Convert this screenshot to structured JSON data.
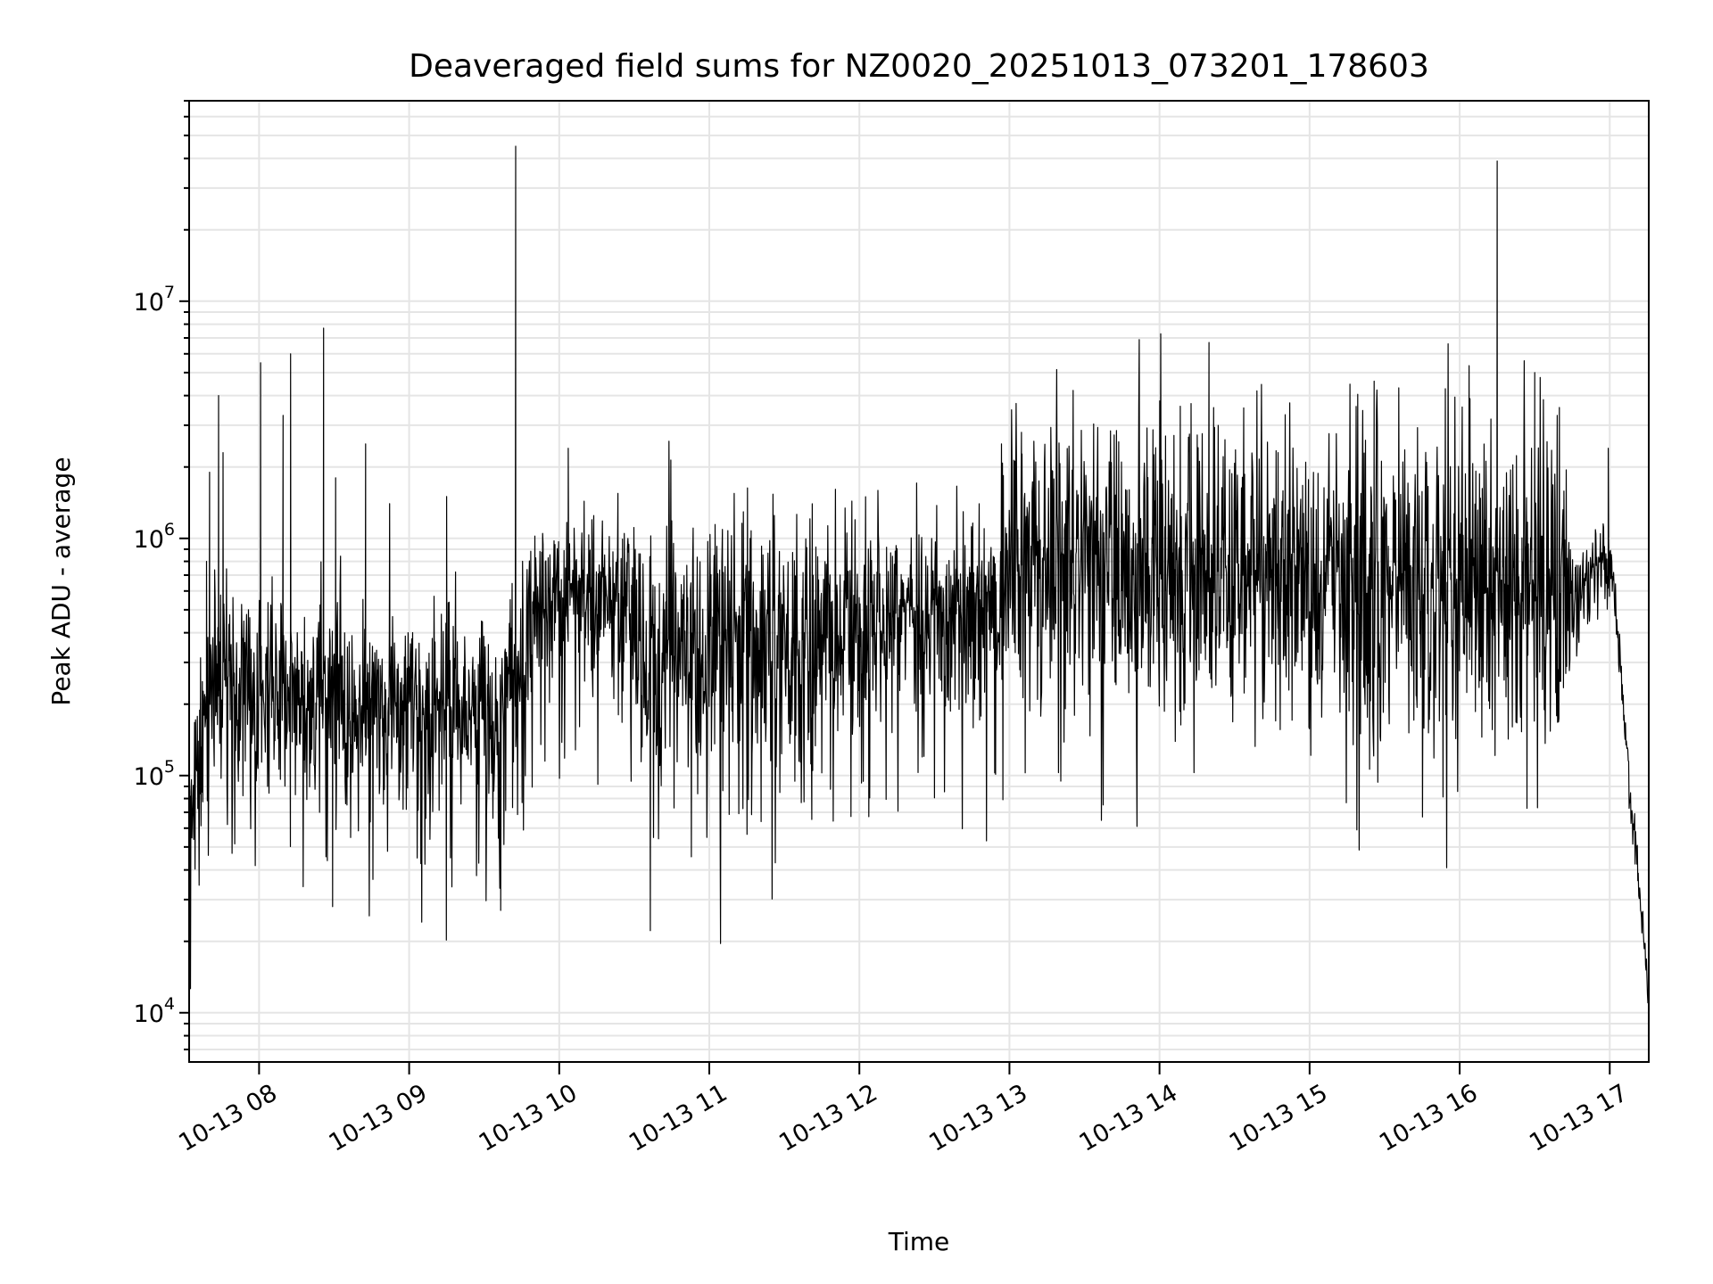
{
  "chart_data": {
    "type": "line",
    "title": "Deaveraged field sums for NZ0020_20251013_073201_178603",
    "xlabel": "Time",
    "ylabel": "Peak ADU - average",
    "yscale": "log",
    "xlim_hours": [
      7.534,
      17.26
    ],
    "ylim": [
      6200,
      70000000
    ],
    "grid": "on (major x, major+minor y)",
    "x_ticks": [
      {
        "hour": 8,
        "label": "10-13 08"
      },
      {
        "hour": 9,
        "label": "10-13 09"
      },
      {
        "hour": 10,
        "label": "10-13 10"
      },
      {
        "hour": 11,
        "label": "10-13 11"
      },
      {
        "hour": 12,
        "label": "10-13 12"
      },
      {
        "hour": 13,
        "label": "10-13 13"
      },
      {
        "hour": 14,
        "label": "10-13 14"
      },
      {
        "hour": 15,
        "label": "10-13 15"
      },
      {
        "hour": 16,
        "label": "10-13 16"
      },
      {
        "hour": 17,
        "label": "10-13 17"
      }
    ],
    "y_ticks": [
      {
        "value": 10000,
        "base": "10",
        "exp": "4"
      },
      {
        "value": 100000,
        "base": "10",
        "exp": "5"
      },
      {
        "value": 1000000,
        "base": "10",
        "exp": "6"
      },
      {
        "value": 10000000,
        "base": "10",
        "exp": "7"
      }
    ],
    "series": [
      {
        "name": "Peak ADU - average",
        "color": "#000000",
        "baseline_hour_log10median_logspread": [
          [
            7.534,
            4.8,
            0.15
          ],
          [
            7.62,
            5.2,
            0.2
          ],
          [
            7.7,
            5.4,
            0.2
          ],
          [
            8.5,
            5.35,
            0.25
          ],
          [
            8.6,
            5.25,
            0.2
          ],
          [
            9.6,
            5.3,
            0.2
          ],
          [
            9.7,
            5.55,
            0.2
          ],
          [
            10.0,
            5.8,
            0.15
          ],
          [
            10.4,
            5.75,
            0.2
          ],
          [
            10.6,
            5.55,
            0.3
          ],
          [
            11.5,
            5.55,
            0.3
          ],
          [
            12.0,
            5.65,
            0.2
          ],
          [
            12.9,
            5.75,
            0.2
          ],
          [
            13.0,
            5.9,
            0.3
          ],
          [
            16.7,
            5.85,
            0.35
          ],
          [
            16.75,
            5.75,
            0.1
          ],
          [
            17.0,
            5.9,
            0.1
          ],
          [
            17.02,
            5.85,
            0.05
          ],
          [
            17.1,
            5.2,
            0.05
          ],
          [
            17.26,
            4.05,
            0.05
          ]
        ],
        "spikes_hour_value": [
          [
            7.65,
            800000
          ],
          [
            7.67,
            1900000
          ],
          [
            7.73,
            4000000
          ],
          [
            7.76,
            2300000
          ],
          [
            8.01,
            5500000
          ],
          [
            8.16,
            3300000
          ],
          [
            8.21,
            6000000
          ],
          [
            8.43,
            7700000
          ],
          [
            8.51,
            1800000
          ],
          [
            8.71,
            2500000
          ],
          [
            8.87,
            1400000
          ],
          [
            9.25,
            1500000
          ],
          [
            9.71,
            45000000
          ],
          [
            10.06,
            2400000
          ],
          [
            13.08,
            2800000
          ],
          [
            14.04,
            2700000
          ],
          [
            14.21,
            3700000
          ],
          [
            14.33,
            6700000
          ],
          [
            14.79,
            2300000
          ],
          [
            15.31,
            3600000
          ],
          [
            15.43,
            4600000
          ],
          [
            16.25,
            39000000
          ],
          [
            16.5,
            5000000
          ],
          [
            16.65,
            3300000
          ],
          [
            16.99,
            2400000
          ]
        ],
        "dips_hour_value": [
          [
            8.49,
            28000
          ],
          [
            9.61,
            27000
          ]
        ]
      }
    ]
  }
}
